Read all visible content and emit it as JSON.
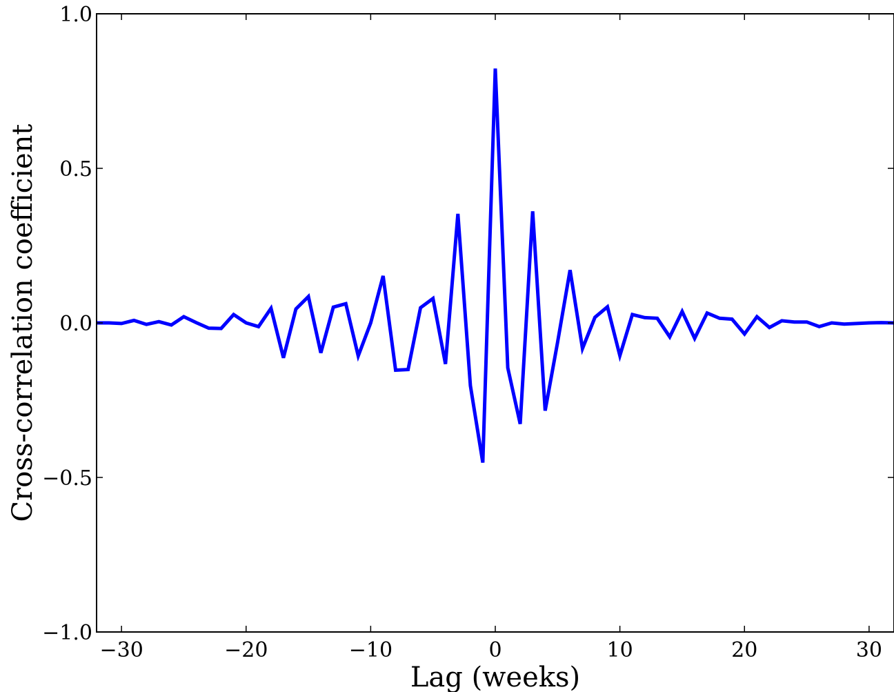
{
  "chart_data": {
    "type": "line",
    "xlabel": "Lag (weeks)",
    "ylabel": "Cross-correlation coefficient",
    "xlim": [
      -32,
      32
    ],
    "ylim": [
      -1.0,
      1.0
    ],
    "xticks": [
      -30,
      -20,
      -10,
      0,
      10,
      20,
      30
    ],
    "xtick_labels": [
      "−30",
      "−20",
      "−10",
      "0",
      "10",
      "20",
      "30"
    ],
    "yticks": [
      -1.0,
      -0.5,
      0.0,
      0.5,
      1.0
    ],
    "ytick_labels": [
      "−1.0",
      "−0.5",
      "0.0",
      "0.5",
      "1.0"
    ],
    "grid": false,
    "series": [
      {
        "color": "#0000ff",
        "x": [
          -32,
          -31,
          -30,
          -29,
          -28,
          -27,
          -26,
          -25,
          -24,
          -23,
          -22,
          -21,
          -20,
          -19,
          -18,
          -17,
          -16,
          -15,
          -14,
          -13,
          -12,
          -11,
          -10,
          -9,
          -8,
          -7,
          -6,
          -5,
          -4,
          -3,
          -2,
          -1,
          0,
          1,
          2,
          3,
          4,
          5,
          6,
          7,
          8,
          9,
          10,
          11,
          12,
          13,
          14,
          15,
          16,
          17,
          18,
          19,
          20,
          21,
          22,
          23,
          24,
          25,
          26,
          27,
          28,
          29,
          30,
          31,
          32
        ],
        "y": [
          0.0,
          0.0,
          -0.002,
          0.008,
          -0.005,
          0.004,
          -0.007,
          0.02,
          0.001,
          -0.017,
          -0.018,
          0.027,
          0.0,
          -0.012,
          0.047,
          -0.113,
          0.045,
          0.085,
          -0.097,
          0.051,
          0.062,
          -0.107,
          0.0,
          0.152,
          -0.153,
          -0.151,
          0.049,
          0.079,
          -0.133,
          0.353,
          -0.203,
          -0.452,
          0.823,
          -0.145,
          -0.327,
          0.361,
          -0.284,
          -0.063,
          0.171,
          -0.083,
          0.018,
          0.052,
          -0.106,
          0.027,
          0.017,
          0.015,
          -0.045,
          0.037,
          -0.05,
          0.032,
          0.015,
          0.012,
          -0.036,
          0.02,
          -0.015,
          0.007,
          0.003,
          0.003,
          -0.012,
          0.0,
          -0.004,
          -0.002,
          0.0,
          0.001,
          0.0
        ]
      }
    ]
  }
}
